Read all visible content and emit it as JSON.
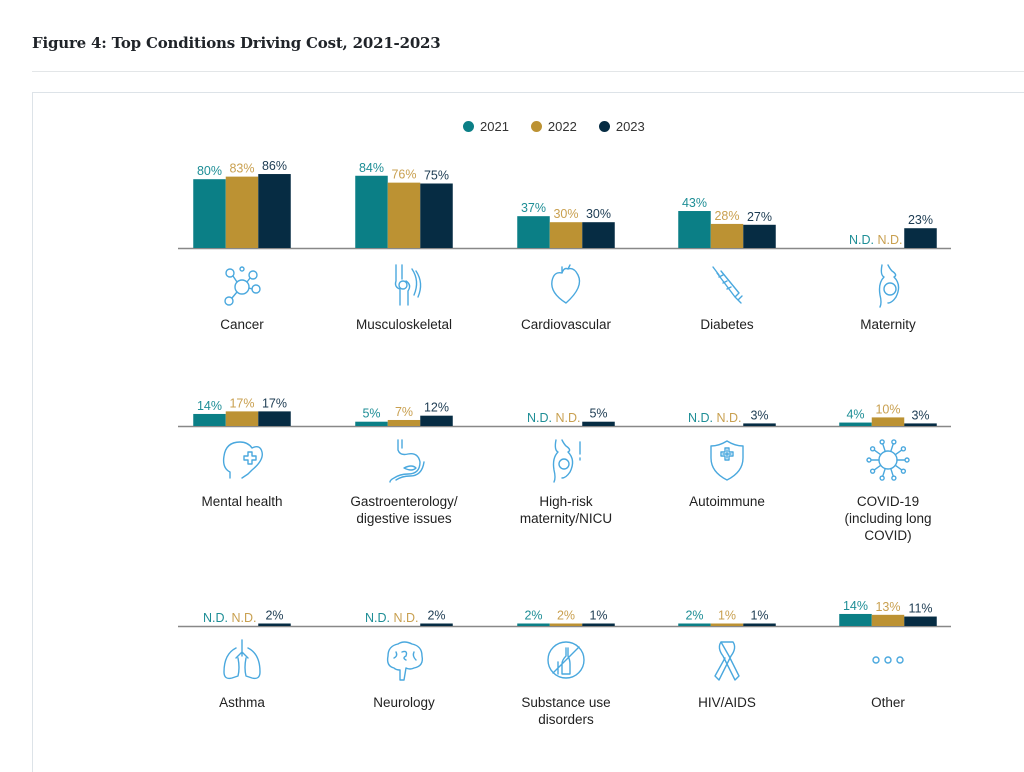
{
  "page": {
    "figure_title": "Figure 4: Top Conditions Driving Cost, 2021-2023"
  },
  "colors": {
    "2021": "#0b7f86",
    "2022": "#bc9233",
    "2023": "#062c43",
    "icon": "#4aa8de",
    "baseline": "#888888"
  },
  "chart_data": {
    "type": "bar",
    "title": "Figure 4: Top Conditions Driving Cost, 2021-2023",
    "xlabel": "",
    "ylabel": "",
    "ylim": [
      0,
      100
    ],
    "unit": "%",
    "legend": {
      "position": "top-center",
      "entries": [
        "2021",
        "2022",
        "2023"
      ]
    },
    "series_names": [
      "2021",
      "2022",
      "2023"
    ],
    "not_disclosed_label": "N.D.",
    "rows": [
      {
        "categories": [
          {
            "name": "Cancer",
            "icon": "molecule-icon",
            "values": [
              80,
              83,
              86
            ]
          },
          {
            "name": "Musculoskeletal",
            "icon": "knee-joint-icon",
            "values": [
              84,
              76,
              75
            ]
          },
          {
            "name": "Cardiovascular",
            "icon": "heart-icon",
            "values": [
              37,
              30,
              30
            ]
          },
          {
            "name": "Diabetes",
            "icon": "syringe-icon",
            "values": [
              43,
              28,
              27
            ]
          },
          {
            "name": "Maternity",
            "icon": "pregnancy-icon",
            "values": [
              null,
              null,
              23
            ]
          }
        ]
      },
      {
        "categories": [
          {
            "name": "Mental health",
            "icon": "head-heart-icon",
            "values": [
              14,
              17,
              17
            ]
          },
          {
            "name": "Gastroenterology/ digestive issues",
            "icon": "stomach-icon",
            "values": [
              5,
              7,
              12
            ]
          },
          {
            "name": "High-risk maternity/NICU",
            "icon": "pregnancy-alert-icon",
            "values": [
              null,
              null,
              5
            ]
          },
          {
            "name": "Autoimmune",
            "icon": "shield-cross-icon",
            "values": [
              null,
              null,
              3
            ]
          },
          {
            "name": "COVID-19 (including long COVID)",
            "icon": "virus-icon",
            "values": [
              4,
              10,
              3
            ]
          }
        ]
      },
      {
        "categories": [
          {
            "name": "Asthma",
            "icon": "lungs-icon",
            "values": [
              null,
              null,
              2
            ]
          },
          {
            "name": "Neurology",
            "icon": "brain-icon",
            "values": [
              null,
              null,
              2
            ]
          },
          {
            "name": "Substance use disorders",
            "icon": "no-alcohol-icon",
            "values": [
              2,
              2,
              1
            ]
          },
          {
            "name": "HIV/AIDS",
            "icon": "ribbon-icon",
            "values": [
              2,
              1,
              1
            ]
          },
          {
            "name": "Other",
            "icon": "ellipsis-icon",
            "values": [
              14,
              13,
              11
            ]
          }
        ]
      }
    ]
  }
}
